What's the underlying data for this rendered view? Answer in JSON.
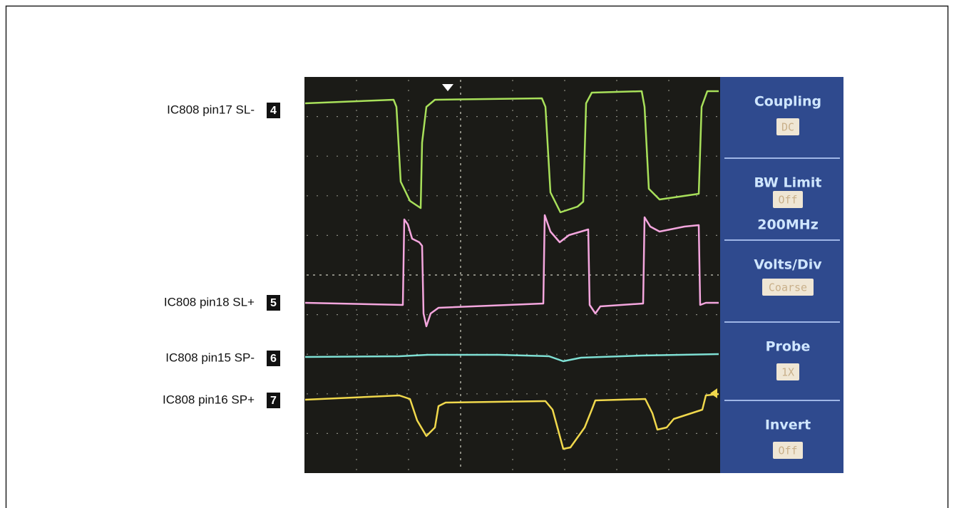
{
  "labels": [
    {
      "text": "IC808 pin17 SL-",
      "badge": "4"
    },
    {
      "text": "IC808 pin18 SL+",
      "badge": "5"
    },
    {
      "text": "IC808 pin15 SP-",
      "badge": "6"
    },
    {
      "text": "IC808 pin16 SP+",
      "badge": "7"
    }
  ],
  "menu": [
    {
      "title": "Coupling",
      "value": "DC"
    },
    {
      "title": "BW Limit",
      "value": "Off",
      "extra": "200MHz"
    },
    {
      "title": "Volts/Div",
      "value": "Coarse"
    },
    {
      "title": "Probe",
      "value": "1X"
    },
    {
      "title": "Invert",
      "value": "Off"
    }
  ]
}
